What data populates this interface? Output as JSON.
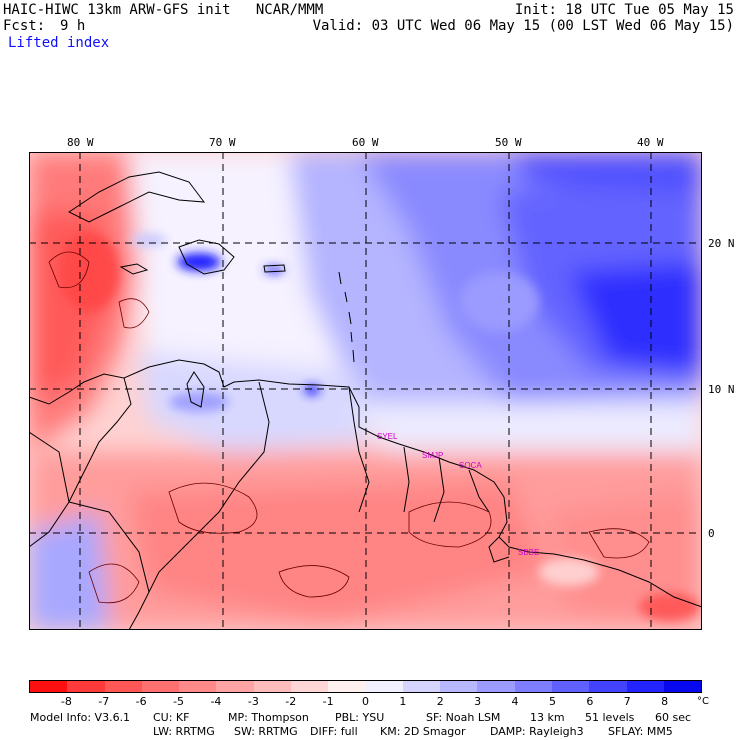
{
  "header": {
    "title": "HAIC-HIWC 13km ARW-GFS init   NCAR/MMM",
    "init": "Init: 18 UTC Tue 05 May 15",
    "fcst_label": "Fcst:",
    "fcst_value": "9 h",
    "valid": "Valid: 03 UTC Wed 06 May 15 (00 LST Wed 06 May 15)",
    "field": "Lifted index"
  },
  "axes": {
    "lon_labels": [
      "80 W",
      "70 W",
      "60 W",
      "50 W",
      "40 W"
    ],
    "lat_labels": [
      "20 N",
      "10 N",
      "0"
    ],
    "grid": "dashed"
  },
  "stations": [
    "SYEL",
    "SMJP",
    "SOCA",
    "SBBE"
  ],
  "colorbar": {
    "ticks": [
      "-8",
      "-7",
      "-6",
      "-5",
      "-4",
      "-3",
      "-2",
      "-1",
      "0",
      "1",
      "2",
      "3",
      "4",
      "5",
      "6",
      "7",
      "8"
    ],
    "unit": "°C",
    "colors": [
      "#ff1010",
      "#ff3a3a",
      "#ff5656",
      "#ff7070",
      "#ff8a8a",
      "#ffa4a4",
      "#ffbcbc",
      "#ffd6d6",
      "#fff0f0",
      "#f0f0ff",
      "#d4d4ff",
      "#b8b8ff",
      "#9c9cff",
      "#7e7eff",
      "#6060ff",
      "#4242ff",
      "#2424ff",
      "#0808ee"
    ]
  },
  "footer": {
    "line1": [
      "Model Info: V3.6.1",
      "CU: KF",
      "MP: Thompson",
      "PBL: YSU",
      "SF: Noah LSM",
      "13 km",
      "51 levels",
      "60 sec"
    ],
    "line2": [
      "LW: RRTMG",
      "SW: RRTMG",
      "DIFF: full",
      "KM: 2D Smagor",
      "DAMP: Rayleigh3",
      "SFLAY: MM5"
    ]
  }
}
